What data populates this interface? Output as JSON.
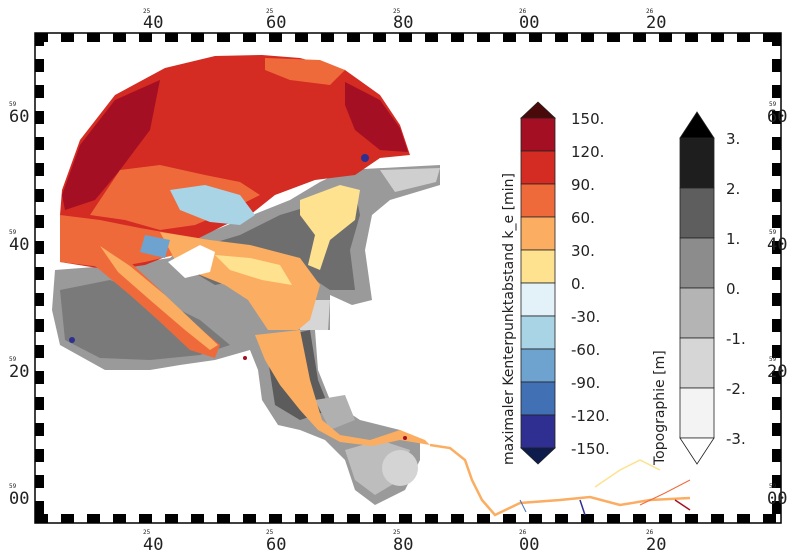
{
  "map": {
    "coord_labels": {
      "top": [
        {
          "small": "25",
          "big": "40"
        },
        {
          "small": "25",
          "big": "60"
        },
        {
          "small": "25",
          "big": "80"
        },
        {
          "small": "26",
          "big": "00"
        },
        {
          "small": "26",
          "big": "20"
        }
      ],
      "bottom": [
        {
          "small": "25",
          "big": "40"
        },
        {
          "small": "25",
          "big": "60"
        },
        {
          "small": "25",
          "big": "80"
        },
        {
          "small": "26",
          "big": "00"
        },
        {
          "small": "26",
          "big": "20"
        }
      ],
      "left": [
        {
          "small": "59",
          "big": "60"
        },
        {
          "small": "59",
          "big": "40"
        },
        {
          "small": "59",
          "big": "20"
        },
        {
          "small": "59",
          "big": "00"
        }
      ],
      "right": [
        {
          "small": "59",
          "big": "60"
        },
        {
          "small": "59",
          "big": "40"
        },
        {
          "small": "59",
          "big": "20"
        },
        {
          "small": "59",
          "big": "00"
        }
      ]
    }
  },
  "legend_main": {
    "title": "maximaler Kenterpunktabstand k_e [min]",
    "labels": [
      "150.",
      "120.",
      "90.",
      "60.",
      "30.",
      "0.",
      "-30.",
      "-60.",
      "-90.",
      "-120.",
      "-150."
    ],
    "colors_top_to_bottom": [
      "#a50f23",
      "#d42b22",
      "#ef6a3b",
      "#fbad62",
      "#fee290",
      "#e2f2f8",
      "#a8d4e6",
      "#6ea3cf",
      "#4270b4",
      "#2e2f91"
    ],
    "over_color": "#4a0a0a",
    "under_color": "#0d1b4d"
  },
  "legend_topo": {
    "title": "Topographie [m]",
    "labels": [
      "3.",
      "2.",
      "1.",
      "0.",
      "-1.",
      "-2.",
      "-3."
    ],
    "colors_top_to_bottom": [
      "#1e1e1e",
      "#5e5e5e",
      "#8c8c8c",
      "#b4b4b4",
      "#d6d6d6",
      "#f3f3f3"
    ],
    "over_color": "#000000",
    "under_color": "#ffffff"
  }
}
